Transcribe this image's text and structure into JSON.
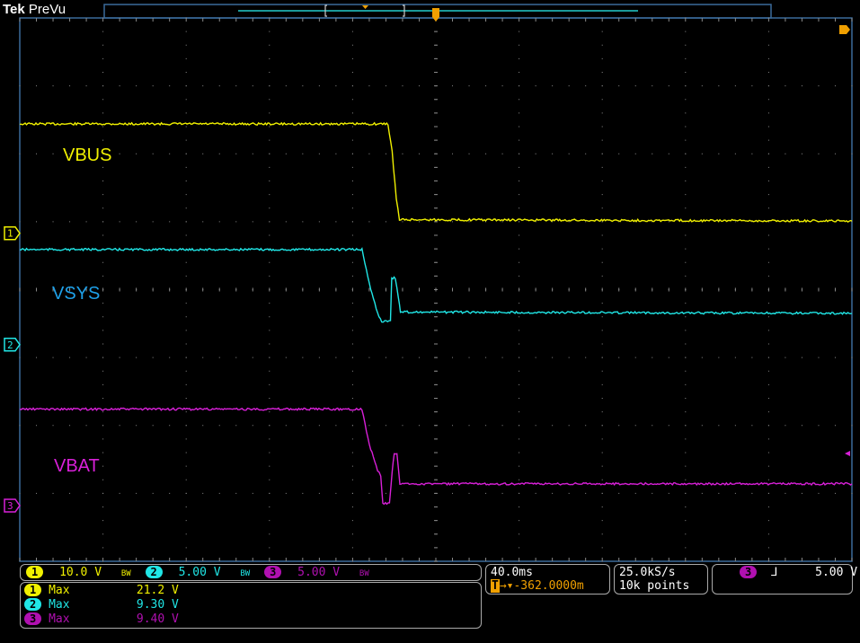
{
  "header": {
    "brand": "Tek",
    "mode": "PreVu"
  },
  "colors": {
    "ch1": "#f0f000",
    "ch2": "#20e6e6",
    "ch3": "#d820d8",
    "trigger": "#f0a000",
    "grid": "#8a8a8a",
    "vsys_label": "#1ea0e8"
  },
  "trace_labels": {
    "ch1": "VBUS",
    "ch2": "VSYS",
    "ch3": "VBAT"
  },
  "channel_markers": [
    "1",
    "2",
    "3"
  ],
  "vertical": [
    {
      "channel": "1",
      "scale": "10.0 V",
      "bw": "BW"
    },
    {
      "channel": "2",
      "scale": "5.00 V",
      "bw": "BW"
    },
    {
      "channel": "3",
      "scale": "5.00 V",
      "bw": "BW"
    }
  ],
  "measurements": [
    {
      "channel": "1",
      "type": "Max",
      "value": "21.2 V"
    },
    {
      "channel": "2",
      "type": "Max",
      "value": "9.30 V"
    },
    {
      "channel": "3",
      "type": "Max",
      "value": "9.40 V"
    }
  ],
  "horizontal": {
    "scale": "40.0ms",
    "position": "-362.0000m"
  },
  "acquisition": {
    "rate": "25.0kS/s",
    "record": "10k points"
  },
  "trigger": {
    "source": "3",
    "slope": "falling",
    "slope_glyph": "⅃",
    "level": "5.00 V"
  },
  "chart_data": {
    "type": "line",
    "xlabel": "",
    "ylabel": "",
    "x_unit": "ms",
    "x_per_div": 40,
    "x_range": [
      -200,
      200
    ],
    "divisions": {
      "horizontal": 10,
      "vertical": 8
    },
    "grid": true,
    "series": [
      {
        "name": "VBUS",
        "channel": "1",
        "volts_per_div": 10,
        "ground_div": 0.83,
        "x": [
          -200,
          -23,
          -21,
          -19,
          -17.5,
          200
        ],
        "y": [
          16.1,
          16.1,
          12,
          5,
          2.0,
          1.8
        ]
      },
      {
        "name": "VSYS",
        "channel": "2",
        "volts_per_div": 5,
        "ground_div": -0.81,
        "x": [
          -200,
          -35.5,
          -32,
          -28,
          -26,
          -21.8,
          -21.2,
          -19.5,
          -18,
          -17,
          200
        ],
        "y": [
          7.0,
          7.0,
          4.5,
          2.3,
          1.7,
          1.8,
          4.9,
          4.9,
          3.5,
          2.4,
          2.3
        ]
      },
      {
        "name": "VBAT",
        "channel": "3",
        "volts_per_div": 5,
        "ground_div": -3.18,
        "x": [
          -200,
          -35.5,
          -32,
          -28,
          -26.5,
          -25.5,
          -22.3,
          -21,
          -20,
          -18.7,
          -17.3,
          200
        ],
        "y": [
          7.1,
          7.1,
          4.5,
          2.6,
          2.2,
          0.1,
          0.2,
          2.5,
          3.8,
          3.8,
          1.6,
          1.6
        ]
      }
    ]
  }
}
